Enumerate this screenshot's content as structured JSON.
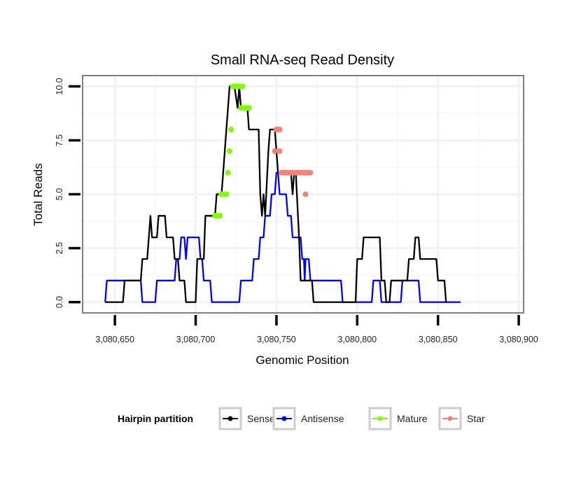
{
  "chart_data": {
    "type": "line",
    "title": "Small RNA-seq Read Density",
    "xlabel": "Genomic Position",
    "ylabel": "Total Reads",
    "xlim": [
      3080630,
      3080903
    ],
    "ylim": [
      -0.5,
      10.5
    ],
    "x_ticks": [
      3080650,
      3080700,
      3080750,
      3080800,
      3080850,
      3080900
    ],
    "x_tick_labels": [
      "3,080,650",
      "3,080,700",
      "3,080,750",
      "3,080,800",
      "3,080,850",
      "3,080,900"
    ],
    "y_ticks": [
      0,
      2.5,
      5,
      7.5,
      10
    ],
    "y_tick_labels": [
      "0.0",
      "2.5",
      "5.0",
      "7.5",
      "10.0"
    ],
    "grid": true,
    "legend": {
      "title": "Hairpin partition",
      "position": "bottom",
      "entries": [
        {
          "name": "Sense",
          "color": "#000000"
        },
        {
          "name": "Antisense",
          "color": "#0000ff"
        },
        {
          "name": "Mature",
          "color": "#7fff00"
        },
        {
          "name": "Star",
          "color": "#fa8072"
        }
      ]
    },
    "series": [
      {
        "name": "Antisense",
        "color": "#0000ff",
        "points": [
          [
            3080644,
            0
          ],
          [
            3080645,
            1
          ],
          [
            3080652,
            1
          ],
          [
            3080653,
            1
          ],
          [
            3080666,
            1
          ],
          [
            3080667,
            0
          ],
          [
            3080675,
            0
          ],
          [
            3080676,
            1
          ],
          [
            3080687,
            1
          ],
          [
            3080688,
            2
          ],
          [
            3080690,
            2
          ],
          [
            3080691,
            3
          ],
          [
            3080693,
            3
          ],
          [
            3080694,
            2
          ],
          [
            3080695,
            3
          ],
          [
            3080702,
            3
          ],
          [
            3080703,
            2
          ],
          [
            3080704,
            2
          ],
          [
            3080705,
            1
          ],
          [
            3080709,
            1
          ],
          [
            3080710,
            0
          ],
          [
            3080727,
            0
          ],
          [
            3080728,
            1
          ],
          [
            3080735,
            1
          ],
          [
            3080736,
            2
          ],
          [
            3080739,
            2
          ],
          [
            3080740,
            3
          ],
          [
            3080742,
            3
          ],
          [
            3080743,
            4
          ],
          [
            3080746,
            4
          ],
          [
            3080747,
            5
          ],
          [
            3080749,
            5
          ],
          [
            3080750,
            6
          ],
          [
            3080751,
            6
          ],
          [
            3080752,
            5
          ],
          [
            3080756,
            5
          ],
          [
            3080757,
            4
          ],
          [
            3080759,
            4
          ],
          [
            3080760,
            3
          ],
          [
            3080765,
            3
          ],
          [
            3080766,
            2
          ],
          [
            3080767,
            2
          ],
          [
            3080767.5,
            1
          ],
          [
            3080768,
            2
          ],
          [
            3080770,
            2
          ],
          [
            3080771,
            1
          ],
          [
            3080790,
            1
          ],
          [
            3080791,
            0
          ],
          [
            3080809,
            0
          ],
          [
            3080810,
            1
          ],
          [
            3080814,
            1
          ],
          [
            3080815,
            0
          ],
          [
            3080827,
            0
          ],
          [
            3080828,
            1
          ],
          [
            3080838,
            1
          ],
          [
            3080839,
            0
          ],
          [
            3080864,
            0
          ]
        ]
      },
      {
        "name": "Sense",
        "color": "#000000",
        "points": [
          [
            3080644,
            0
          ],
          [
            3080655,
            0
          ],
          [
            3080656,
            1
          ],
          [
            3080666,
            1
          ],
          [
            3080667,
            2
          ],
          [
            3080670,
            2
          ],
          [
            3080672,
            4
          ],
          [
            3080673,
            3
          ],
          [
            3080676,
            3
          ],
          [
            3080677,
            4
          ],
          [
            3080681,
            4
          ],
          [
            3080682,
            3
          ],
          [
            3080686,
            3
          ],
          [
            3080687,
            2
          ],
          [
            3080689,
            2
          ],
          [
            3080690,
            1
          ],
          [
            3080693,
            1
          ],
          [
            3080694,
            0
          ],
          [
            3080700,
            0
          ],
          [
            3080701,
            2
          ],
          [
            3080705,
            2
          ],
          [
            3080706,
            4
          ],
          [
            3080712,
            4
          ],
          [
            3080713,
            5
          ],
          [
            3080716,
            5
          ],
          [
            3080717,
            6
          ],
          [
            3080718,
            7
          ],
          [
            3080719,
            8
          ],
          [
            3080721,
            10
          ],
          [
            3080724,
            10
          ],
          [
            3080726,
            9
          ],
          [
            3080727,
            10
          ],
          [
            3080728,
            9
          ],
          [
            3080732,
            9
          ],
          [
            3080733,
            8
          ],
          [
            3080739,
            8
          ],
          [
            3080740,
            5
          ],
          [
            3080741,
            4
          ],
          [
            3080742,
            5
          ],
          [
            3080743,
            4
          ],
          [
            3080745,
            7
          ],
          [
            3080746,
            8
          ],
          [
            3080749,
            8
          ],
          [
            3080750,
            7
          ],
          [
            3080751,
            6
          ],
          [
            3080759,
            6
          ],
          [
            3080760,
            5
          ],
          [
            3080761,
            6
          ],
          [
            3080762,
            6
          ],
          [
            3080764,
            3
          ],
          [
            3080765,
            1
          ],
          [
            3080772,
            1
          ],
          [
            3080773,
            0
          ],
          [
            3080799,
            0
          ],
          [
            3080800,
            2
          ],
          [
            3080803,
            2
          ],
          [
            3080804,
            3
          ],
          [
            3080814,
            3
          ],
          [
            3080815,
            1
          ],
          [
            3080817,
            1
          ],
          [
            3080818,
            0
          ],
          [
            3080820,
            0
          ],
          [
            3080821,
            1
          ],
          [
            3080831,
            1
          ],
          [
            3080832,
            2
          ],
          [
            3080835,
            2
          ],
          [
            3080836,
            3
          ],
          [
            3080838,
            3
          ],
          [
            3080839,
            2
          ],
          [
            3080849,
            2
          ],
          [
            3080850,
            1
          ],
          [
            3080854,
            1
          ],
          [
            3080855,
            0
          ]
        ]
      },
      {
        "name": "Mature",
        "color": "#7fff00",
        "points": [
          [
            3080712,
            4
          ],
          [
            3080713,
            4
          ],
          [
            3080714,
            4
          ],
          [
            3080715,
            4
          ],
          [
            3080716,
            5
          ],
          [
            3080717,
            5
          ],
          [
            3080718,
            5
          ],
          [
            3080719,
            5
          ],
          [
            3080720,
            6
          ],
          [
            3080721,
            7
          ],
          [
            3080722,
            8
          ],
          [
            3080723,
            10
          ],
          [
            3080724,
            10
          ],
          [
            3080725,
            10
          ],
          [
            3080726,
            10
          ],
          [
            3080727,
            10
          ],
          [
            3080729,
            10
          ],
          [
            3080728,
            9
          ],
          [
            3080730,
            9
          ],
          [
            3080731,
            9
          ],
          [
            3080732,
            9
          ],
          [
            3080733,
            9
          ]
        ]
      },
      {
        "name": "Star",
        "color": "#fa8072",
        "points": [
          [
            3080749,
            7
          ],
          [
            3080750,
            8
          ],
          [
            3080751,
            8
          ],
          [
            3080752,
            8
          ],
          [
            3080752,
            7
          ],
          [
            3080753,
            6
          ],
          [
            3080754,
            6
          ],
          [
            3080755,
            6
          ],
          [
            3080756,
            6
          ],
          [
            3080757,
            6
          ],
          [
            3080758,
            6
          ],
          [
            3080759,
            6
          ],
          [
            3080760,
            6
          ],
          [
            3080761,
            6
          ],
          [
            3080762,
            6
          ],
          [
            3080763,
            6
          ],
          [
            3080764,
            6
          ],
          [
            3080765,
            6
          ],
          [
            3080766,
            6
          ],
          [
            3080767,
            6
          ],
          [
            3080768,
            6
          ],
          [
            3080769,
            6
          ],
          [
            3080770,
            6
          ],
          [
            3080771,
            6
          ],
          [
            3080768,
            5
          ]
        ]
      }
    ]
  }
}
